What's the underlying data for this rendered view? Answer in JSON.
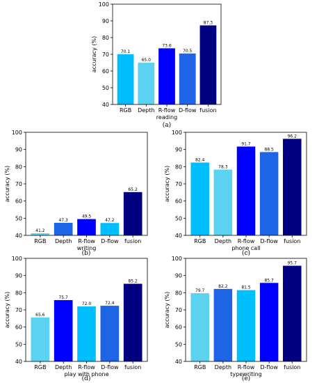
{
  "colors": {
    "bright_blue": "#00bfff",
    "light_blue": "#5ad2f0",
    "blue": "#0000ff",
    "royal_blue": "#1e64e6",
    "navy": "#000080"
  },
  "chart_data": [
    {
      "type": "bar",
      "caption": "(a)",
      "xlabel": "reading",
      "ylabel": "accuracy (%)",
      "ylim": [
        40,
        100
      ],
      "yticks": [
        40,
        50,
        60,
        70,
        80,
        90,
        100
      ],
      "categories": [
        "RGB",
        "Depth",
        "R-flow",
        "D-flow",
        "fusion"
      ],
      "values": [
        70.1,
        65.0,
        73.6,
        70.5,
        87.3
      ],
      "value_labels": [
        "70.1",
        "65.0",
        "73.6",
        "70.5",
        "87.3"
      ],
      "bar_colors": [
        "#00bfff",
        "#5ad2f0",
        "#0000ff",
        "#1e64e6",
        "#000080"
      ],
      "grid": false
    },
    {
      "type": "bar",
      "caption": "(b)",
      "xlabel": "writing",
      "ylabel": "accuracy (%)",
      "ylim": [
        40,
        100
      ],
      "yticks": [
        40,
        50,
        60,
        70,
        80,
        90,
        100
      ],
      "categories": [
        "RGB",
        "Depth",
        "R-flow",
        "D-flow",
        "fusion"
      ],
      "values": [
        41.2,
        47.3,
        49.5,
        47.2,
        65.2
      ],
      "value_labels": [
        "41.2",
        "47.3",
        "49.5",
        "47.2",
        "65.2"
      ],
      "bar_colors": [
        "#5ad2f0",
        "#1e64e6",
        "#0000ff",
        "#00bfff",
        "#000080"
      ],
      "grid": false
    },
    {
      "type": "bar",
      "caption": "(c)",
      "xlabel": "phone call",
      "ylabel": "accuracy (%)",
      "ylim": [
        40,
        100
      ],
      "yticks": [
        40,
        50,
        60,
        70,
        80,
        90,
        100
      ],
      "categories": [
        "RGB",
        "Depth",
        "R-flow",
        "D-flow",
        "fusion"
      ],
      "values": [
        82.4,
        78.3,
        91.7,
        88.5,
        96.2
      ],
      "value_labels": [
        "82.4",
        "78.3",
        "91.7",
        "88.5",
        "96.2"
      ],
      "bar_colors": [
        "#00bfff",
        "#5ad2f0",
        "#0000ff",
        "#1e64e6",
        "#000080"
      ],
      "grid": false
    },
    {
      "type": "bar",
      "caption": "(d)",
      "xlabel": "play with phone",
      "ylabel": "accuracy (%)",
      "ylim": [
        40,
        100
      ],
      "yticks": [
        40,
        50,
        60,
        70,
        80,
        90,
        100
      ],
      "categories": [
        "RGB",
        "Depth",
        "R-flow",
        "D-flow",
        "fusion"
      ],
      "values": [
        65.6,
        75.7,
        72.0,
        72.4,
        85.2
      ],
      "value_labels": [
        "65.6",
        "75.7",
        "72.0",
        "72.4",
        "85.2"
      ],
      "bar_colors": [
        "#5ad2f0",
        "#0000ff",
        "#00bfff",
        "#1e64e6",
        "#000080"
      ],
      "grid": false
    },
    {
      "type": "bar",
      "caption": "(e)",
      "xlabel": "typewriting",
      "ylabel": "accuracy (%)",
      "ylim": [
        40,
        100
      ],
      "yticks": [
        40,
        50,
        60,
        70,
        80,
        90,
        100
      ],
      "categories": [
        "RGB",
        "Depth",
        "R-flow",
        "D-flow",
        "fusion"
      ],
      "values": [
        79.7,
        82.2,
        81.5,
        85.7,
        95.7
      ],
      "value_labels": [
        "79.7",
        "82.2",
        "81.5",
        "85.7",
        "95.7"
      ],
      "bar_colors": [
        "#5ad2f0",
        "#1e64e6",
        "#00bfff",
        "#0000ff",
        "#000080"
      ],
      "grid": false
    }
  ]
}
